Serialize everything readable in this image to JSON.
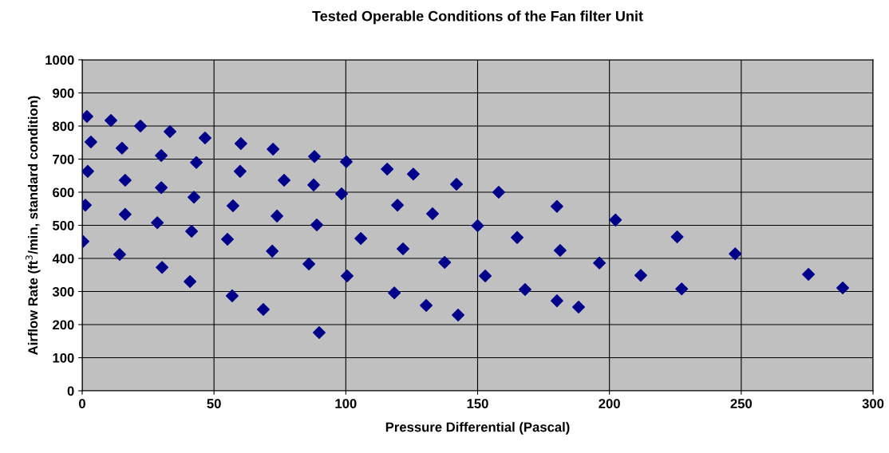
{
  "chart_data": {
    "type": "scatter",
    "title": "Tested Operable Conditions of the Fan filter Unit",
    "xlabel": "Pressure Differential (Pascal)",
    "ylabel": "Airflow Rate (ft$^{3}$/min, standard condition)",
    "xlim": [
      0,
      300
    ],
    "xticks": [
      0,
      50,
      100,
      150,
      200,
      250,
      300
    ],
    "ylim": [
      0,
      1000
    ],
    "yticks": [
      0,
      100,
      200,
      300,
      400,
      500,
      600,
      700,
      800,
      900,
      1000
    ],
    "grid": true,
    "marker": "diamond",
    "series": [
      {
        "color": "#00008b",
        "x": [
          1.8,
          3.3,
          2.1,
          1.2,
          0.3,
          10.9,
          15.1,
          16.3,
          16.3,
          14.2,
          22.1,
          30.0,
          30.0,
          28.5,
          30.3,
          33.3,
          43.3,
          42.4,
          41.5,
          40.9,
          46.6,
          60.2,
          59.9,
          57.2,
          55.1,
          56.9,
          72.4,
          76.6,
          73.9,
          72.1,
          68.7,
          88.1,
          87.8,
          89.0,
          86.0,
          89.9,
          100.2,
          98.4,
          105.7,
          100.5,
          115.7,
          119.6,
          125.6,
          121.7,
          118.4,
          132.9,
          130.5,
          142.0,
          137.5,
          142.6,
          158.0,
          150.0,
          152.9,
          165.0,
          168.0,
          180.1,
          181.3,
          180.1,
          188.3,
          196.2,
          202.3,
          211.9,
          225.7,
          227.4,
          247.7,
          275.5,
          288.5
        ],
        "values": [
          829,
          752,
          663,
          561,
          451,
          817,
          733,
          636,
          533,
          412,
          800,
          711,
          614,
          508,
          373,
          783,
          690,
          585,
          482,
          330,
          764,
          747,
          663,
          559,
          458,
          287,
          730,
          636,
          528,
          422,
          246,
          708,
          622,
          501,
          383,
          176,
          692,
          595,
          460,
          347,
          670,
          561,
          655,
          429,
          296,
          535,
          258,
          624,
          388,
          229,
          600,
          499,
          347,
          463,
          306,
          557,
          424,
          272,
          253,
          386,
          516,
          349,
          465,
          308,
          414,
          352,
          311
        ]
      }
    ]
  }
}
